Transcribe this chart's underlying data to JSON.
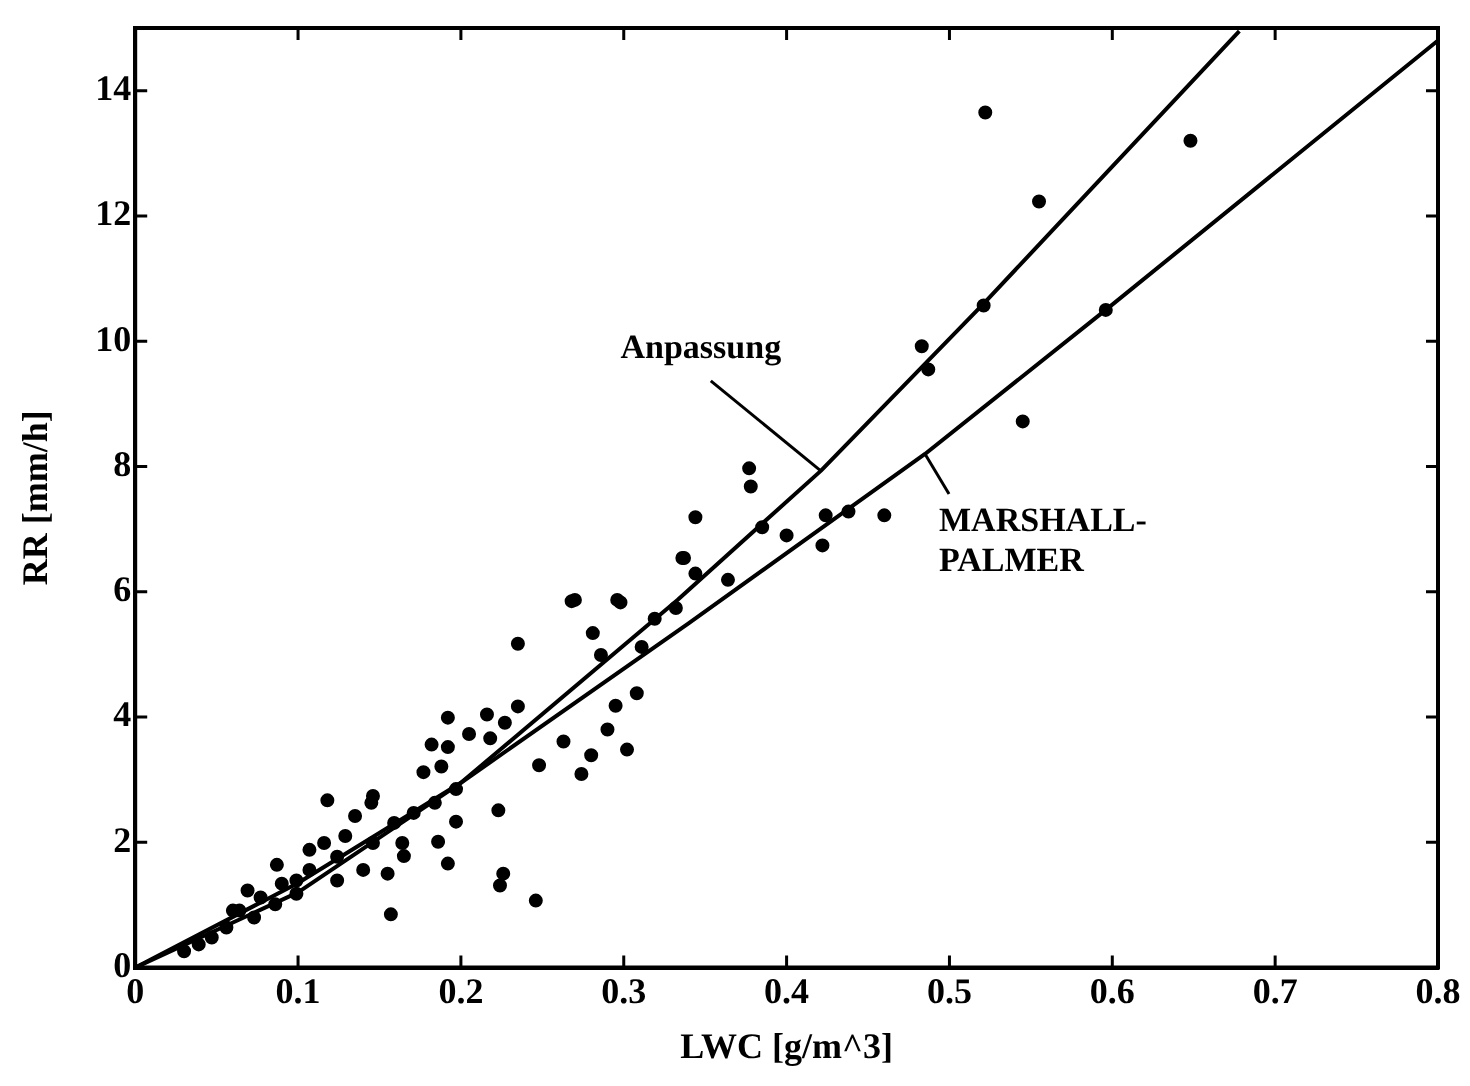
{
  "chart_data": {
    "type": "scatter",
    "xlabel": "LWC [g/m^3]",
    "ylabel": "RR [mm/h]",
    "xlim": [
      0,
      0.8
    ],
    "ylim": [
      0,
      15
    ],
    "xticks": [
      0,
      0.1,
      0.2,
      0.3,
      0.4,
      0.5,
      0.6,
      0.7,
      0.8
    ],
    "yticks": [
      0,
      2,
      4,
      6,
      8,
      10,
      12,
      14
    ],
    "grid": false,
    "series": [
      {
        "type": "scatter",
        "marker": "circle",
        "color": "#000000",
        "x": [
          0.522,
          0.648,
          0.555,
          0.521,
          0.483,
          0.487,
          0.545,
          0.377,
          0.378,
          0.344,
          0.385,
          0.4,
          0.424,
          0.438,
          0.46,
          0.422,
          0.337,
          0.344,
          0.364,
          0.27,
          0.296,
          0.319,
          0.332,
          0.596,
          0.268,
          0.298,
          0.235,
          0.281,
          0.336,
          0.286,
          0.311,
          0.308,
          0.295,
          0.29,
          0.302,
          0.28,
          0.274,
          0.263,
          0.248,
          0.235,
          0.216,
          0.227,
          0.218,
          0.205,
          0.192,
          0.182,
          0.192,
          0.177,
          0.188,
          0.197,
          0.223,
          0.226,
          0.224,
          0.246,
          0.192,
          0.186,
          0.197,
          0.157,
          0.118,
          0.087,
          0.145,
          0.135,
          0.164,
          0.165,
          0.155,
          0.14,
          0.124,
          0.116,
          0.107,
          0.099,
          0.086,
          0.073,
          0.064,
          0.056,
          0.047,
          0.039,
          0.03,
          0.129,
          0.146,
          0.124,
          0.099,
          0.077,
          0.069,
          0.06,
          0.159,
          0.171,
          0.184,
          0.146,
          0.107,
          0.09
        ],
        "values": [
          13.65,
          13.2,
          12.23,
          10.57,
          9.92,
          9.55,
          8.72,
          7.97,
          7.68,
          7.19,
          7.03,
          6.9,
          7.22,
          7.28,
          7.22,
          6.74,
          6.54,
          6.29,
          6.19,
          5.87,
          5.87,
          5.57,
          5.74,
          10.5,
          5.85,
          5.83,
          5.17,
          5.34,
          6.54,
          4.99,
          5.12,
          4.38,
          4.18,
          3.8,
          3.48,
          3.39,
          3.09,
          3.61,
          3.23,
          4.17,
          4.04,
          3.91,
          3.66,
          3.73,
          3.99,
          3.56,
          3.52,
          3.12,
          3.21,
          2.85,
          2.51,
          1.5,
          1.31,
          1.07,
          1.66,
          2.01,
          2.33,
          0.85,
          2.67,
          1.64,
          2.63,
          2.42,
          1.99,
          1.78,
          1.5,
          1.56,
          1.39,
          1.99,
          1.56,
          1.18,
          1.01,
          0.8,
          0.91,
          0.64,
          0.48,
          0.37,
          0.26,
          2.1,
          1.99,
          1.77,
          1.39,
          1.12,
          1.23,
          0.91,
          2.31,
          2.47,
          2.63,
          2.74,
          1.88,
          1.34
        ]
      },
      {
        "type": "line",
        "marker": "none",
        "name": "Anpassung",
        "color": "#000000",
        "x": [
          0,
          0.1,
          0.2,
          0.333,
          0.421,
          0.521,
          0.678
        ],
        "values": [
          0,
          1.2,
          2.95,
          5.87,
          7.93,
          10.6,
          14.95
        ]
      },
      {
        "type": "line",
        "marker": "none",
        "name": "MARSHALL-PALMER",
        "color": "#000000",
        "x": [
          0,
          0.1,
          0.2,
          0.34,
          0.485,
          0.596,
          0.8
        ],
        "values": [
          0,
          1.35,
          2.95,
          5.5,
          8.2,
          10.5,
          14.8
        ]
      }
    ]
  }
}
